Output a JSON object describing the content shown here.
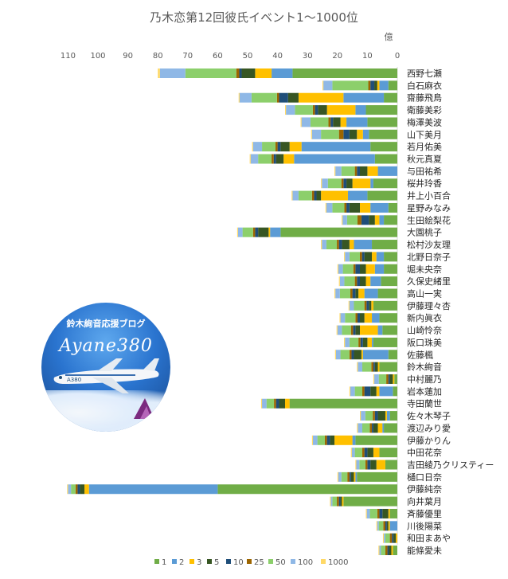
{
  "chart_data": {
    "type": "bar",
    "orientation": "horizontal-stacked",
    "title": "乃木恋第12回彼氏イベント1～1000位",
    "unit_label": "億",
    "x_direction": "reversed",
    "xlim": [
      0,
      115
    ],
    "xticks": [
      "110",
      "100",
      "90",
      "80",
      "70",
      "60",
      "50",
      "40",
      "30",
      "20",
      "10",
      "0"
    ],
    "grid": false,
    "legend_position": "bottom",
    "tiers": [
      {
        "key": "1",
        "label": "1",
        "color": "#70ad47"
      },
      {
        "key": "2",
        "label": "2",
        "color": "#5b9bd5"
      },
      {
        "key": "3",
        "label": "3",
        "color": "#ffc000"
      },
      {
        "key": "5",
        "label": "5",
        "color": "#375623"
      },
      {
        "key": "10",
        "label": "10",
        "color": "#1f4e79"
      },
      {
        "key": "25",
        "label": "25",
        "color": "#9c6500"
      },
      {
        "key": "50",
        "label": "50",
        "color": "#8ccf6b"
      },
      {
        "key": "100",
        "label": "100",
        "color": "#8fb8e6"
      },
      {
        "key": "1000",
        "label": "1000",
        "color": "#ffd966"
      }
    ],
    "members": [
      {
        "name": "西野七瀬",
        "values": [
          35,
          7,
          5.5,
          4.5,
          0.8,
          1,
          17,
          8.5,
          0.7
        ]
      },
      {
        "name": "白石麻衣",
        "values": [
          3,
          3,
          0.7,
          1,
          1.3,
          0.7,
          12,
          3,
          0.3
        ]
      },
      {
        "name": "齋藤飛鳥",
        "values": [
          4.5,
          13.5,
          15,
          3.5,
          3,
          0.7,
          8.5,
          4,
          0.3
        ]
      },
      {
        "name": "衛藤美彩",
        "values": [
          10.5,
          3.5,
          9.5,
          3,
          1,
          0.7,
          6,
          3,
          0.3
        ]
      },
      {
        "name": "梅澤美波",
        "values": [
          10,
          7,
          2,
          2.5,
          0.8,
          0.7,
          6,
          3,
          0.3
        ]
      },
      {
        "name": "山下美月",
        "values": [
          9.5,
          2,
          2,
          2.5,
          2,
          1.5,
          6,
          3,
          0.3
        ]
      },
      {
        "name": "若月佑美",
        "values": [
          9,
          23,
          4,
          3,
          1,
          0.7,
          4.5,
          3,
          0.3
        ]
      },
      {
        "name": "秋元真夏",
        "values": [
          7.5,
          27,
          3.5,
          2.5,
          0.8,
          0.7,
          4.5,
          2.5,
          0.3
        ]
      },
      {
        "name": "与田祐希",
        "values": [
          0,
          6.5,
          3.5,
          2.5,
          1,
          0.7,
          4.5,
          2,
          0.3
        ]
      },
      {
        "name": "桜井玲香",
        "values": [
          8,
          1,
          6,
          2,
          1,
          0.7,
          4.5,
          2,
          0.3
        ]
      },
      {
        "name": "井上小百合",
        "values": [
          10,
          6.5,
          9,
          1.5,
          0.8,
          0.7,
          4.5,
          2,
          0.3
        ]
      },
      {
        "name": "星野みなみ",
        "values": [
          3,
          6,
          3.5,
          3.5,
          1,
          0.7,
          4,
          2,
          0.3
        ]
      },
      {
        "name": "生田絵梨花",
        "values": [
          4.5,
          1.5,
          1.5,
          2,
          2.5,
          1.3,
          3.5,
          1.5,
          0.3
        ]
      },
      {
        "name": "大園桃子",
        "values": [
          39,
          3.5,
          0.5,
          3.5,
          1,
          0.7,
          3.5,
          1.5,
          0.3
        ]
      },
      {
        "name": "松村沙友理",
        "values": [
          8.5,
          6,
          1.5,
          2.5,
          1,
          0.7,
          3.5,
          1.5,
          0.3
        ]
      },
      {
        "name": "北野日奈子",
        "values": [
          4.5,
          2.5,
          1.5,
          2.5,
          0.8,
          0.7,
          3.5,
          1.5,
          0.3
        ]
      },
      {
        "name": "堀未央奈",
        "values": [
          4.5,
          3,
          3,
          2,
          1.5,
          0.7,
          3.5,
          1.5,
          0.3
        ]
      },
      {
        "name": "久保史緒里",
        "values": [
          5.5,
          3.5,
          1.5,
          2,
          1,
          0.7,
          3.5,
          1.5,
          0.3
        ]
      },
      {
        "name": "高山一実",
        "values": [
          6.5,
          4.5,
          2,
          1,
          1,
          0.7,
          3.5,
          1.5,
          0.3
        ]
      },
      {
        "name": "伊藤理々杏",
        "values": [
          8,
          0,
          0.7,
          0.8,
          0.8,
          0.7,
          3.5,
          1.5,
          0.3
        ]
      },
      {
        "name": "新内眞衣",
        "values": [
          6,
          2.5,
          2.5,
          1.5,
          0.8,
          0.7,
          3.5,
          1.5,
          0.3
        ]
      },
      {
        "name": "山崎怜奈",
        "values": [
          5,
          1.5,
          6,
          1.5,
          0.8,
          0.7,
          3,
          1.5,
          0.3
        ]
      },
      {
        "name": "阪口珠美",
        "values": [
          8,
          0.5,
          1.5,
          1.5,
          0.8,
          0.7,
          3,
          1.5,
          0.3
        ]
      },
      {
        "name": "佐藤楓",
        "values": [
          3,
          8.5,
          0.5,
          2.5,
          0.8,
          0.7,
          3,
          1.5,
          0.3
        ]
      },
      {
        "name": "鈴木絢音",
        "values": [
          6,
          0,
          0.5,
          1,
          0.5,
          0.7,
          3,
          1.5,
          0.3
        ]
      },
      {
        "name": "中村麗乃",
        "values": [
          1,
          0,
          0.5,
          1,
          0.5,
          0.7,
          2.5,
          1.5,
          0.3
        ]
      },
      {
        "name": "岩本蓮加",
        "values": [
          1.5,
          4.5,
          1,
          2,
          2,
          0.7,
          2.5,
          1.5,
          0.3
        ]
      },
      {
        "name": "寺田蘭世",
        "values": [
          36,
          0,
          1.5,
          2,
          1,
          0.7,
          2.5,
          1.5,
          0.3
        ]
      },
      {
        "name": "佐々木琴子",
        "values": [
          2.5,
          1,
          0.5,
          2.5,
          1,
          0.7,
          2.5,
          1.5,
          0.3
        ]
      },
      {
        "name": "渡辺みり愛",
        "values": [
          4.5,
          0.5,
          1.5,
          1.5,
          0.5,
          0.7,
          2.5,
          1.5,
          0.3
        ]
      },
      {
        "name": "伊藤かりん",
        "values": [
          14,
          1,
          6,
          1.5,
          1,
          0.7,
          2.5,
          1.5,
          0.3
        ]
      },
      {
        "name": "中田花奈",
        "values": [
          6,
          0,
          2,
          2,
          1,
          0.7,
          2.5,
          1,
          0.3
        ]
      },
      {
        "name": "吉田綾乃クリスティー",
        "values": [
          4,
          0,
          3,
          2,
          1,
          0.7,
          2,
          1,
          0.3
        ]
      },
      {
        "name": "樋口日奈",
        "values": [
          13.5,
          0.5,
          0.5,
          1,
          0.5,
          0.7,
          2,
          1,
          0.3
        ]
      },
      {
        "name": "伊藤純奈",
        "values": [
          60,
          43,
          1.5,
          1.5,
          0.8,
          0.7,
          1.5,
          1,
          0.3
        ]
      },
      {
        "name": "向井葉月",
        "values": [
          18,
          0,
          0.5,
          0.5,
          0.5,
          0.7,
          1.5,
          0.5,
          0.3
        ]
      },
      {
        "name": "斉藤優里",
        "values": [
          2.5,
          0,
          0.5,
          2,
          1,
          0.7,
          2.5,
          1,
          0.3
        ]
      },
      {
        "name": "川後陽菜",
        "values": [
          0,
          2.5,
          0.5,
          0.5,
          0.5,
          0.7,
          1.5,
          0.5,
          0.3
        ]
      },
      {
        "name": "和田まあや",
        "values": [
          0,
          0,
          0.5,
          0.8,
          0.5,
          0.7,
          1.5,
          0.5,
          0.3
        ]
      },
      {
        "name": "能條愛未",
        "values": [
          1.5,
          0,
          0.5,
          0.8,
          0.5,
          0.7,
          1.5,
          0.5,
          0.3
        ]
      }
    ]
  },
  "logo": {
    "line1": "鈴木絢音応援ブログ",
    "line2": "Ayane380",
    "badge": "A380"
  }
}
